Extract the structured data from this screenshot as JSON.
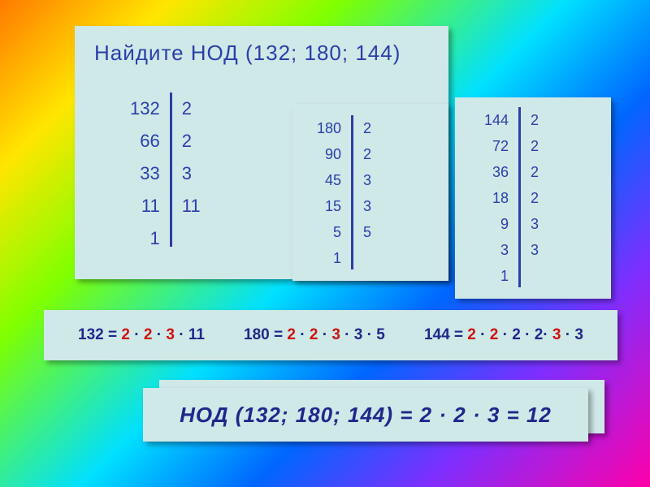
{
  "title": "Найдите  НОД  (132; 180; 144)",
  "tables": {
    "t1": {
      "left": [
        "132",
        "66",
        "33",
        "11",
        "1"
      ],
      "right": [
        "2",
        "2",
        "3",
        "11"
      ]
    },
    "t2": {
      "left": [
        "180",
        "90",
        "45",
        "15",
        "5",
        "1"
      ],
      "right": [
        "2",
        "2",
        "3",
        "3",
        "5"
      ]
    },
    "t3": {
      "left": [
        "144",
        "72",
        "36",
        "18",
        "9",
        "3",
        "1"
      ],
      "right": [
        "2",
        "2",
        "2",
        "2",
        "3",
        "3"
      ]
    }
  },
  "factorizations": {
    "f1": {
      "num": "132",
      "parts": [
        {
          "t": "2",
          "hl": true
        },
        {
          "t": " · "
        },
        {
          "t": "2",
          "hl": true
        },
        {
          "t": " · "
        },
        {
          "t": "3",
          "hl": true
        },
        {
          "t": " · "
        },
        {
          "t": "11"
        }
      ]
    },
    "f2": {
      "num": "180",
      "parts": [
        {
          "t": "2",
          "hl": true
        },
        {
          "t": " · "
        },
        {
          "t": "2",
          "hl": true
        },
        {
          "t": " · "
        },
        {
          "t": "3",
          "hl": true
        },
        {
          "t": " · "
        },
        {
          "t": "3"
        },
        {
          "t": " · "
        },
        {
          "t": "5"
        }
      ]
    },
    "f3": {
      "num": "144",
      "parts": [
        {
          "t": "2",
          "hl": true
        },
        {
          "t": " · "
        },
        {
          "t": "2",
          "hl": true
        },
        {
          "t": " · "
        },
        {
          "t": "2"
        },
        {
          "t": " · "
        },
        {
          "t": "2"
        },
        {
          "t": "· "
        },
        {
          "t": "3",
          "hl": true
        },
        {
          "t": " · "
        },
        {
          "t": "3"
        }
      ]
    }
  },
  "result": {
    "label": "НОД",
    "args": "(132; 180; 144)",
    "parts": [
      {
        "t": " = "
      },
      {
        "t": "2"
      },
      {
        "t": " · "
      },
      {
        "t": "2"
      },
      {
        "t": " · "
      },
      {
        "t": "3"
      },
      {
        "t": " = "
      },
      {
        "t": "12"
      }
    ]
  },
  "style": {
    "accent_color": "#2a3fa8",
    "highlight_color": "#d01010",
    "panel_bg": "#cfe8e8"
  }
}
